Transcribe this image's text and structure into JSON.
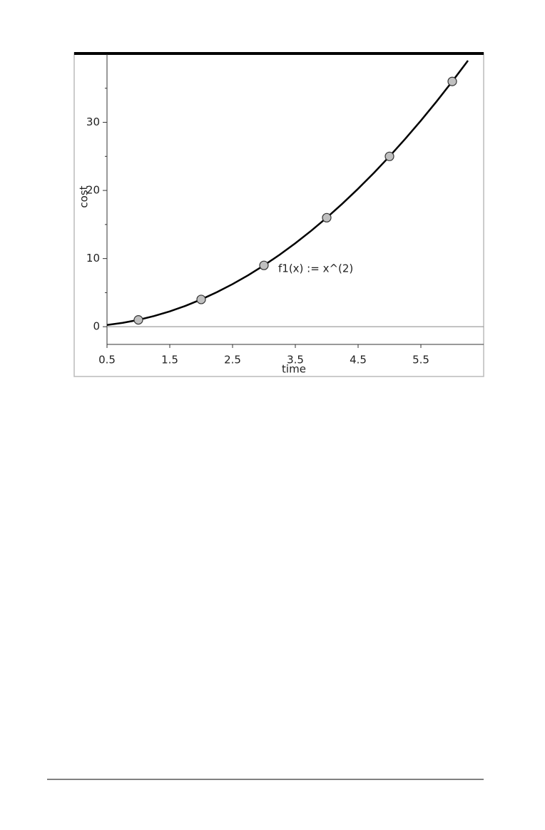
{
  "chart_data": {
    "type": "scatter",
    "x_label": "time",
    "y_label": "cost",
    "function_label": "f1(x) := x^(2)",
    "x": [
      1,
      2,
      3,
      4,
      5,
      6
    ],
    "values": [
      1,
      4,
      9,
      16,
      25,
      36
    ],
    "point_color": "#c0c0c0",
    "curve": {
      "color": "#000000",
      "x": [
        0.5,
        0.75,
        1,
        1.25,
        1.5,
        1.75,
        2,
        2.25,
        2.5,
        2.75,
        3,
        3.25,
        3.5,
        3.75,
        4,
        4.25,
        4.5,
        4.75,
        5,
        5.25,
        5.5,
        5.75,
        6,
        6.25
      ],
      "values": [
        0.25,
        0.5625,
        1,
        1.5625,
        2.25,
        3.0625,
        4,
        5.0625,
        6.25,
        7.5625,
        9,
        10.5625,
        12.25,
        14.0625,
        16,
        18.0625,
        20.25,
        22.5625,
        25,
        27.5625,
        30.25,
        33.0625,
        36,
        39.0625
      ]
    },
    "xlim": [
      0.5,
      6.5
    ],
    "ylim": [
      -2.6,
      40
    ],
    "xticks": [
      0.5,
      1.5,
      2.5,
      3.5,
      4.5,
      5.5
    ],
    "yticks": [
      0,
      10,
      20,
      30
    ],
    "y_minor_ticks": [
      5,
      15,
      25,
      35
    ]
  }
}
